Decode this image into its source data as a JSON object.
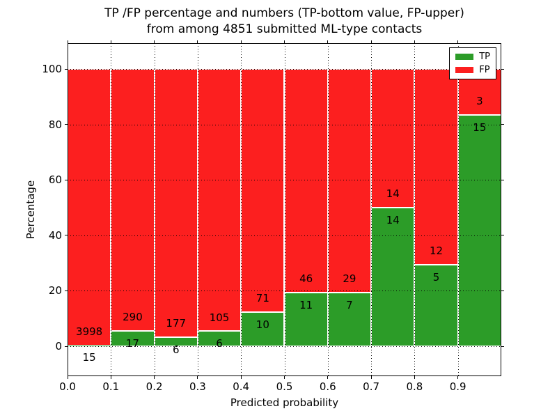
{
  "chart_data": {
    "type": "bar",
    "stacked": true,
    "unit": "percent",
    "title": "TP /FP percentage and numbers (TP-bottom value, FP-upper) from among 4851 submitted ML-type contacts",
    "title_line1": "TP /FP percentage and numbers (TP-bottom value, FP-upper)",
    "title_line2": "from among 4851 submitted ML-type contacts",
    "xlabel": "Predicted probability",
    "ylabel": "Percentage",
    "xlim": [
      0.0,
      1.0
    ],
    "ylim": [
      -10.8,
      109.3
    ],
    "xtick_labels": [
      "0.0",
      "0.1",
      "0.2",
      "0.3",
      "0.4",
      "0.5",
      "0.6",
      "0.7",
      "0.8",
      "0.9"
    ],
    "yticks": [
      0,
      20,
      40,
      60,
      80,
      100
    ],
    "grid": true,
    "grid_style": "dotted",
    "bar_edge_color": "#ffffff",
    "legend_position": "upper right",
    "series": [
      {
        "name": "TP",
        "color": "#2c9c28"
      },
      {
        "name": "FP",
        "color": "#fc1f1f"
      }
    ],
    "total_contacts": 4851,
    "bins": [
      {
        "range": [
          0.0,
          0.1
        ],
        "tp": 15,
        "fp": 3998,
        "tp_pct": 0.37
      },
      {
        "range": [
          0.1,
          0.2
        ],
        "tp": 17,
        "fp": 290,
        "tp_pct": 5.54
      },
      {
        "range": [
          0.2,
          0.3
        ],
        "tp": 6,
        "fp": 177,
        "tp_pct": 3.28
      },
      {
        "range": [
          0.3,
          0.4
        ],
        "tp": 6,
        "fp": 105,
        "tp_pct": 5.41
      },
      {
        "range": [
          0.4,
          0.5
        ],
        "tp": 10,
        "fp": 71,
        "tp_pct": 12.35
      },
      {
        "range": [
          0.5,
          0.6
        ],
        "tp": 11,
        "fp": 46,
        "tp_pct": 19.3
      },
      {
        "range": [
          0.6,
          0.7
        ],
        "tp": 7,
        "fp": 29,
        "tp_pct": 19.44
      },
      {
        "range": [
          0.7,
          0.8
        ],
        "tp": 14,
        "fp": 14,
        "tp_pct": 50.0
      },
      {
        "range": [
          0.8,
          0.9
        ],
        "tp": 5,
        "fp": 12,
        "tp_pct": 29.41
      },
      {
        "range": [
          0.9,
          1.0
        ],
        "tp": 15,
        "fp": 3,
        "tp_pct": 83.33
      }
    ]
  }
}
